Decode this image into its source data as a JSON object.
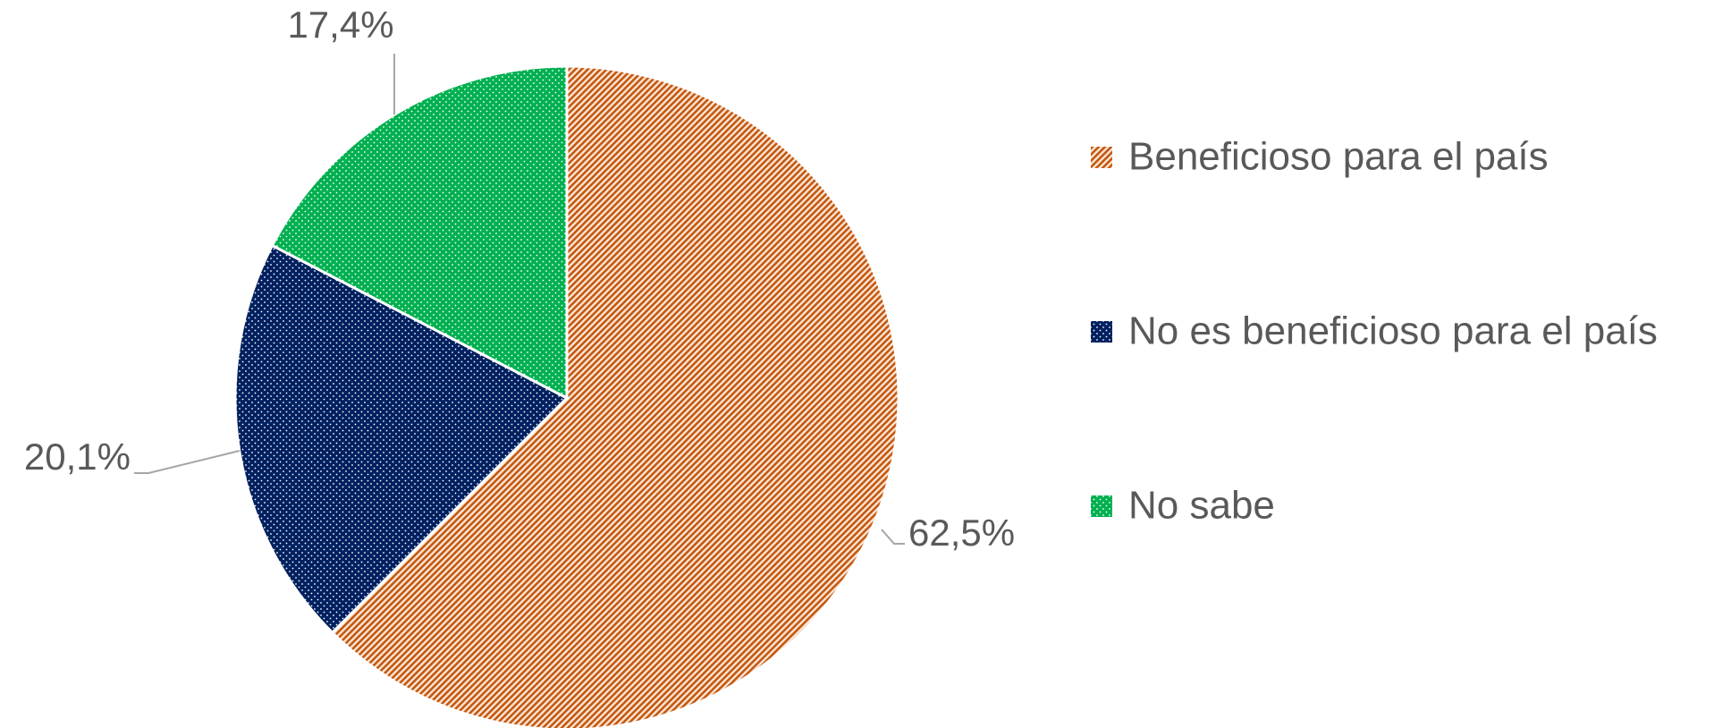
{
  "chart_data": {
    "type": "pie",
    "categories": [
      "Beneficioso para el país",
      "No es beneficioso para el país",
      "No sabe"
    ],
    "values": [
      62.5,
      20.1,
      17.4
    ],
    "value_labels": [
      "62,5%",
      "20,1%",
      "17,4%"
    ],
    "colors": [
      "#c55a11",
      "#002060",
      "#00b050"
    ],
    "legend": "right"
  }
}
